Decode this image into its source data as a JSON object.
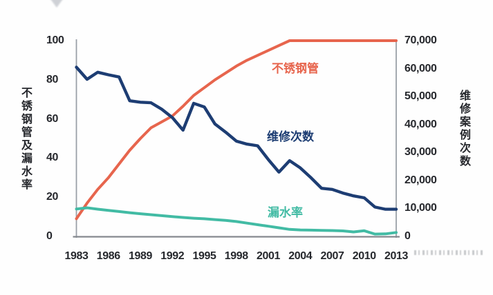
{
  "chart": {
    "background": "#fefefe",
    "axis_line_color": "#9aa0a7",
    "baseline_color": "#84888e",
    "text_color": "#26282d",
    "arrow_icon_color": "#c7cad0"
  },
  "chart_data": {
    "type": "line",
    "title": "",
    "x": [
      1983,
      1984,
      1985,
      1986,
      1987,
      1988,
      1989,
      1990,
      1991,
      1992,
      1993,
      1994,
      1995,
      1996,
      1997,
      1998,
      1999,
      2000,
      2001,
      2002,
      2003,
      2004,
      2005,
      2006,
      2007,
      2008,
      2009,
      2010,
      2011,
      2012,
      2013
    ],
    "x_tick_labels": [
      "1983",
      "1986",
      "1989",
      "1992",
      "1995",
      "1998",
      "2001",
      "2004",
      "2007",
      "2010",
      "2013"
    ],
    "grid": false,
    "legend_position": "inline-annotations",
    "left_axis": {
      "label": "不锈钢管及漏水率",
      "range": [
        0,
        100
      ],
      "ticks": [
        "100",
        "80",
        "60",
        "40",
        "20",
        "0"
      ]
    },
    "right_axis": {
      "label": "维修案例次数",
      "range": [
        0,
        70000
      ],
      "ticks": [
        "70,000",
        "60,000",
        "50,000",
        "40,000",
        "30,000",
        "20,000",
        "10,000",
        "0"
      ]
    },
    "series": [
      {
        "name": "不锈钢管",
        "axis": "left",
        "color": "#e7654d",
        "values": [
          9,
          17,
          24,
          30,
          37,
          44,
          50,
          55.5,
          58.5,
          61.5,
          66.5,
          72,
          76,
          80,
          83.5,
          87,
          90,
          92.5,
          95,
          97.5,
          100,
          100,
          100,
          100,
          100,
          100,
          100,
          100,
          100,
          100,
          100
        ]
      },
      {
        "name": "维修次数",
        "axis": "right",
        "color": "#1d3d73",
        "values": [
          60500,
          56200,
          58700,
          57800,
          57000,
          48500,
          48000,
          47800,
          45500,
          42500,
          38000,
          47600,
          46300,
          40200,
          37300,
          34100,
          33000,
          32400,
          27500,
          23000,
          27100,
          24500,
          21000,
          17200,
          16800,
          15500,
          14500,
          13800,
          10500,
          9700,
          9700
        ]
      },
      {
        "name": "漏水率",
        "axis": "left",
        "color": "#42bba4",
        "values": [
          14,
          14.6,
          13.9,
          13.3,
          12.7,
          12.1,
          11.6,
          11.1,
          10.6,
          10.1,
          9.7,
          9.3,
          9.0,
          8.6,
          8.2,
          7.6,
          6.8,
          6.0,
          5.2,
          4.4,
          3.6,
          3.3,
          3.2,
          3.1,
          3.0,
          2.8,
          2.3,
          2.9,
          1.2,
          1.3,
          2.0
        ]
      }
    ]
  }
}
